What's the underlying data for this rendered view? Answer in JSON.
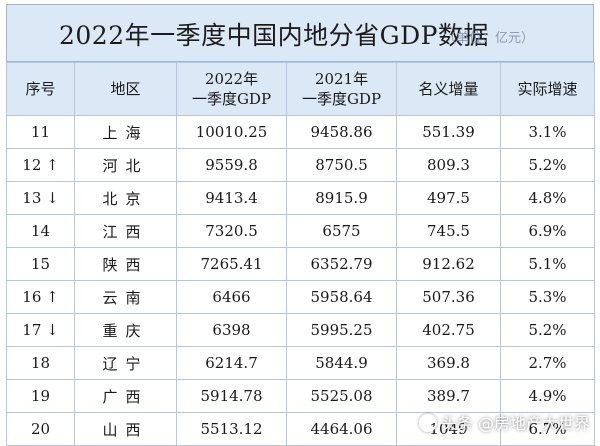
{
  "title": "2022年一季度中国内地分省GDP数据",
  "unit": "（单位：亿元）",
  "headers": [
    "序号",
    "地区",
    "2022年\n一季度GDP",
    "2021年\n一季度GDP",
    "名义增量",
    "实际增速"
  ],
  "rows": [
    [
      "11",
      "上海",
      "10010.25",
      "9458.86",
      "551.39",
      "3.1%"
    ],
    [
      "12 ↑",
      "河北",
      "9559.8",
      "8750.5",
      "809.3",
      "5.2%"
    ],
    [
      "13 ↓",
      "北京",
      "9413.4",
      "8915.9",
      "497.5",
      "4.8%"
    ],
    [
      "14",
      "江西",
      "7320.5",
      "6575",
      "745.5",
      "6.9%"
    ],
    [
      "15",
      "陕西",
      "7265.41",
      "6352.79",
      "912.62",
      "5.1%"
    ],
    [
      "16 ↑",
      "云南",
      "6466",
      "5958.64",
      "507.36",
      "5.3%"
    ],
    [
      "17 ↓",
      "重庆",
      "6398",
      "5995.25",
      "402.75",
      "5.2%"
    ],
    [
      "18",
      "辽宁",
      "6214.7",
      "5844.9",
      "369.8",
      "2.7%"
    ],
    [
      "19",
      "广西",
      "5914.78",
      "5525.08",
      "389.7",
      "4.9%"
    ],
    [
      "20",
      "山西",
      "5513.12",
      "4464.06",
      "1049",
      "6.7%"
    ]
  ],
  "watermark": "头条 @房地产大世界"
}
